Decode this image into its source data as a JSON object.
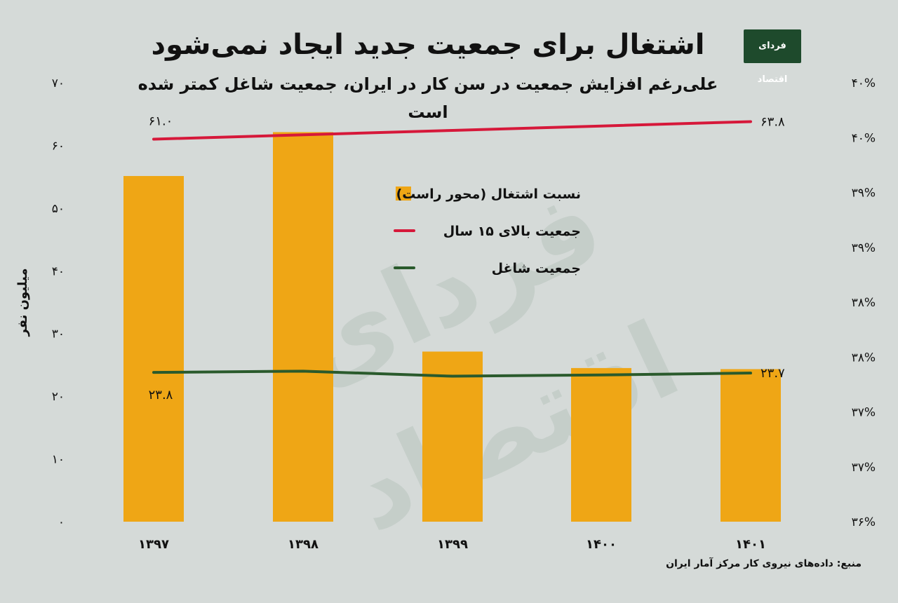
{
  "title": "اشتغال برای جمعیت جدید ایجاد نمی‌شود",
  "subtitle": "علی‌رغم افزایش جمعیت در سن کار در ایران، جمعیت شاغل کمتر شده است",
  "logo": {
    "text": "فردای اقتصاد"
  },
  "source": "منبع: داده‌های نیروی کار مرکز آمار ایران",
  "colors": {
    "bar": "#efa615",
    "line_population": "#d6183a",
    "line_employed": "#2a5a2c",
    "background": "#d5dad8"
  },
  "chart_data": {
    "type": "bar",
    "categories": [
      "۱۳۹۷",
      "۱۳۹۸",
      "۱۳۹۹",
      "۱۴۰۰",
      "۱۴۰۱"
    ],
    "y_left": {
      "label": "میلیون نفر",
      "ticks": [
        "۰",
        "۱۰",
        "۲۰",
        "۳۰",
        "۴۰",
        "۵۰",
        "۶۰",
        "۷۰"
      ],
      "range": [
        0,
        70
      ]
    },
    "y_right": {
      "ticks": [
        "۳۶%",
        "۳۷%",
        "۳۷%",
        "۳۸%",
        "۳۸%",
        "۳۹%",
        "۳۹%",
        "۴۰%",
        "۴۰%"
      ],
      "range": [
        36,
        40
      ]
    },
    "series": [
      {
        "name": "نسبت اشتغال (محور راست)",
        "kind": "bar",
        "axis": "right",
        "values": [
          39.15,
          39.55,
          37.55,
          37.4,
          37.39
        ]
      },
      {
        "name": "جمعیت بالای ۱۵ سال",
        "kind": "line",
        "axis": "left",
        "values": [
          61.0,
          61.7,
          62.4,
          63.1,
          63.8
        ],
        "labels": [
          {
            "index": 0,
            "text": "۶۱.۰"
          },
          {
            "index": 4,
            "text": "۶۳.۸"
          }
        ]
      },
      {
        "name": "جمعیت شاغل",
        "kind": "line",
        "axis": "left",
        "values": [
          23.8,
          24.0,
          23.2,
          23.4,
          23.7
        ],
        "labels": [
          {
            "index": 0,
            "text": "۲۳.۸"
          },
          {
            "index": 4,
            "text": "۲۳.۷"
          }
        ]
      }
    ],
    "legend_position": "center",
    "grid": false
  }
}
